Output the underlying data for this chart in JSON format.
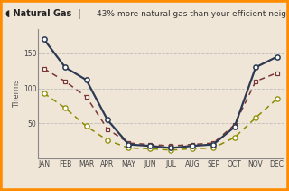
{
  "months": [
    "JAN",
    "FEB",
    "MAR",
    "APR",
    "MAY",
    "JUN",
    "JUL",
    "AUG",
    "SEP",
    "OCT",
    "NOV",
    "DEC"
  ],
  "me": [
    170,
    130,
    112,
    55,
    20,
    18,
    15,
    18,
    20,
    45,
    130,
    145
  ],
  "average": [
    128,
    110,
    88,
    42,
    22,
    20,
    18,
    20,
    22,
    48,
    110,
    122
  ],
  "efficient": [
    93,
    72,
    46,
    26,
    15,
    14,
    12,
    14,
    15,
    30,
    58,
    85
  ],
  "me_color": "#2b3a52",
  "average_color": "#7a3535",
  "efficient_color": "#8b8b00",
  "background_color": "#f0e6d8",
  "border_color": "#ff8c00",
  "title_icon": "◖",
  "ylabel": "Therms",
  "ylim": [
    0,
    185
  ],
  "yticks": [
    50,
    100,
    150
  ],
  "axis_fontsize": 5.5,
  "ylabel_fontsize": 6,
  "title_fontsize": 7,
  "subtitle_fontsize": 6.5
}
